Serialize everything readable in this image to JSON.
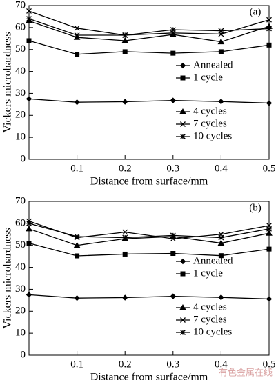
{
  "chart_data": [
    {
      "type": "line",
      "panel_label": "(a)",
      "xlabel": "Distance from surface/mm",
      "ylabel": "Vickers microhardness",
      "x": [
        0,
        0.1,
        0.2,
        0.3,
        0.4,
        0.5
      ],
      "xlim": [
        0,
        0.5
      ],
      "xticks": [
        0.1,
        0.2,
        0.3,
        0.4,
        0.5
      ],
      "ylim": [
        0,
        70
      ],
      "yticks": [
        0,
        10,
        20,
        30,
        40,
        50,
        60,
        70
      ],
      "series": [
        {
          "name": "Annealed",
          "color": "#000000",
          "marker": "diamond",
          "values": [
            27.5,
            26,
            26.2,
            26.8,
            26.3,
            25.6
          ]
        },
        {
          "name": "1 cycle",
          "color": "#000000",
          "marker": "square",
          "values": [
            54,
            47.8,
            49,
            48.3,
            49,
            52
          ]
        },
        {
          "name": "4 cycles",
          "color": "#000000",
          "marker": "triangle",
          "values": [
            63,
            55.5,
            54,
            56.8,
            53.5,
            60.5
          ]
        },
        {
          "name": "7 cycles",
          "color": "#000000",
          "marker": "x",
          "values": [
            67.5,
            59.7,
            56.5,
            57.5,
            57,
            63.5
          ]
        },
        {
          "name": "10 cycles",
          "color": "#000000",
          "marker": "star",
          "values": [
            64,
            56.5,
            56.5,
            59,
            58.5,
            59.5
          ]
        }
      ]
    },
    {
      "type": "line",
      "panel_label": "(b)",
      "xlabel": "Distance from surface/mm",
      "ylabel": "Vickers microhardness",
      "x": [
        0,
        0.1,
        0.2,
        0.3,
        0.4,
        0.5
      ],
      "xlim": [
        0,
        0.5
      ],
      "xticks": [
        0.1,
        0.2,
        0.3,
        0.4,
        0.5
      ],
      "ylim": [
        0,
        70
      ],
      "yticks": [
        0,
        10,
        20,
        30,
        40,
        50,
        60,
        70
      ],
      "series": [
        {
          "name": "Annealed",
          "color": "#000000",
          "marker": "diamond",
          "values": [
            27.5,
            26,
            26.2,
            26.8,
            26.3,
            25.6
          ]
        },
        {
          "name": "1 cycle",
          "color": "#000000",
          "marker": "square",
          "values": [
            51,
            45.2,
            46,
            46.3,
            45.3,
            48.3
          ]
        },
        {
          "name": "4 cycles",
          "color": "#000000",
          "marker": "triangle",
          "values": [
            57.5,
            50,
            53,
            54,
            51,
            55.5
          ]
        },
        {
          "name": "7 cycles",
          "color": "#000000",
          "marker": "x",
          "values": [
            61,
            53.5,
            56,
            53,
            55,
            59
          ]
        },
        {
          "name": "10 cycles",
          "color": "#000000",
          "marker": "star",
          "values": [
            60,
            54,
            53.5,
            54.5,
            53.5,
            57.5
          ]
        }
      ]
    }
  ],
  "watermark": "有色金属在线"
}
